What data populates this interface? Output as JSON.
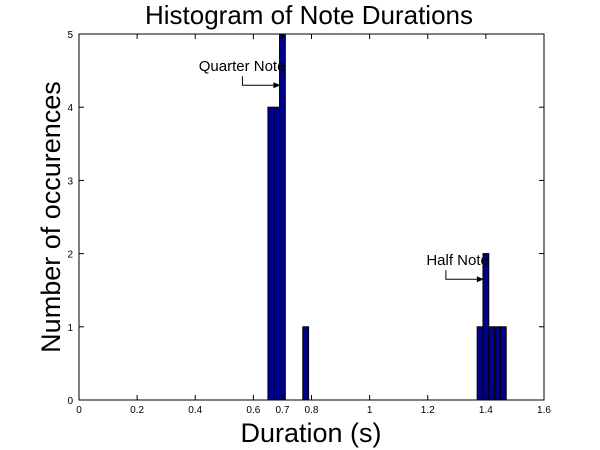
{
  "chart_data": {
    "type": "bar",
    "title": "Histogram of Note Durations",
    "xlabel": "Duration (s)",
    "ylabel": "Number of occurences",
    "xlim": [
      0,
      1.6
    ],
    "ylim": [
      0,
      5
    ],
    "xticks": [
      0,
      0.2,
      0.4,
      0.6,
      0.7,
      0.8,
      1,
      1.2,
      1.4,
      1.6
    ],
    "xtick_labels": [
      "0",
      "0.2",
      "0.4",
      "0.6",
      "0.7",
      "0.8",
      "1",
      "1.2",
      "1.4",
      "1.6"
    ],
    "yticks": [
      0,
      1,
      2,
      3,
      4,
      5
    ],
    "ytick_labels": [
      "0",
      "1",
      "2",
      "3",
      "4",
      "5"
    ],
    "bar_width": 0.02,
    "bar_color": "#00008B",
    "grid": false,
    "bars": [
      {
        "x": 0.66,
        "y": 4
      },
      {
        "x": 0.68,
        "y": 4
      },
      {
        "x": 0.7,
        "y": 5
      },
      {
        "x": 0.78,
        "y": 1
      },
      {
        "x": 1.38,
        "y": 1
      },
      {
        "x": 1.4,
        "y": 2
      },
      {
        "x": 1.42,
        "y": 1
      },
      {
        "x": 1.44,
        "y": 1
      },
      {
        "x": 1.46,
        "y": 1
      }
    ],
    "annotations": [
      {
        "text": "Quarter Note",
        "x": 0.7,
        "y": 4.3
      },
      {
        "text": "Half Note",
        "x": 1.4,
        "y": 1.65
      }
    ]
  }
}
